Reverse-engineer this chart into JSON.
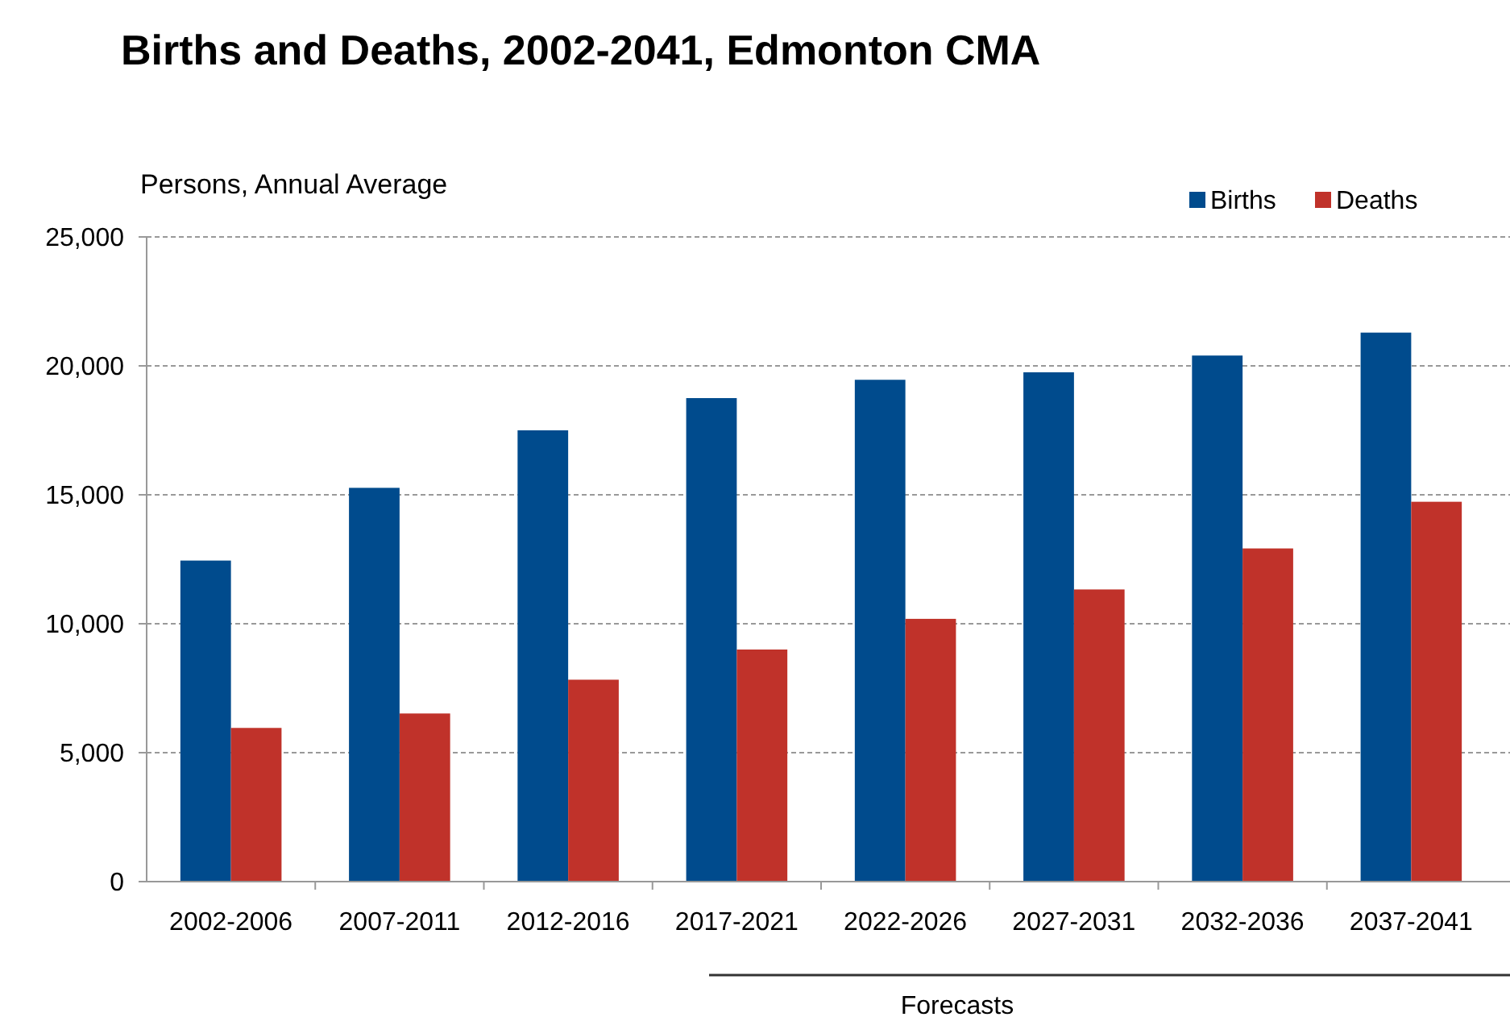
{
  "chart_data": {
    "type": "bar",
    "title": "Births and Deaths, 2002-2041, Edmonton CMA",
    "ylabel": "Persons, Annual Average",
    "categories": [
      "2002-2006",
      "2007-2011",
      "2012-2016",
      "2017-2021",
      "2022-2026",
      "2027-2031",
      "2032-2036",
      "2037-2041"
    ],
    "series": [
      {
        "name": "Births",
        "color": "#004b8d",
        "values": [
          12450,
          15270,
          17500,
          18750,
          19460,
          19750,
          20400,
          21290
        ]
      },
      {
        "name": "Deaths",
        "color": "#c0322a",
        "values": [
          5960,
          6520,
          7830,
          9000,
          10190,
          11330,
          12920,
          14730
        ]
      }
    ],
    "ylim": [
      0,
      25000
    ],
    "yticks": [
      {
        "value": 0,
        "label": "0"
      },
      {
        "value": 5000,
        "label": "5,000"
      },
      {
        "value": 10000,
        "label": "10,000"
      },
      {
        "value": 15000,
        "label": "15,000"
      },
      {
        "value": 20000,
        "label": "20,000"
      },
      {
        "value": 25000,
        "label": "25,000"
      }
    ],
    "grid": "y",
    "legend": "top right",
    "annotations": [
      "Forecasts"
    ]
  }
}
